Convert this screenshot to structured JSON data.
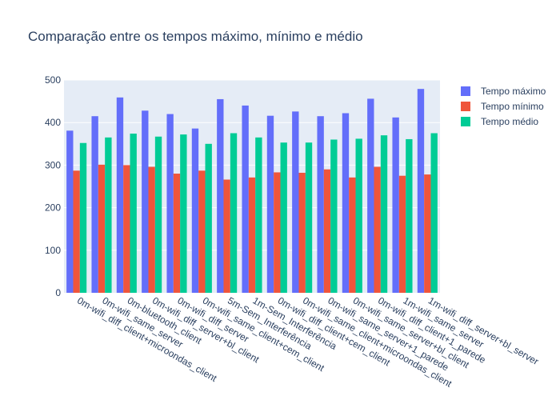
{
  "chart_data": {
    "type": "bar",
    "title": "Comparação entre os tempos máximo, mínimo e médio",
    "xlabel": "",
    "ylabel": "",
    "ylim": [
      0,
      500
    ],
    "yticks": [
      0,
      100,
      200,
      300,
      400,
      500
    ],
    "grid": true,
    "legend_position": "top-right",
    "categories": [
      "0m-wifi_diff_client+microondas_client",
      "0m-wifi_same_server",
      "0m-bluetooth_client",
      "0m-wifi_diff_server+bl_client",
      "0m-wifi_diff_server",
      "0m-wifi_same_client+cem_client",
      "5m-Sem_Interferência",
      "1m-Sem_Interferência",
      "0m-wifi_diff_client+cem_client",
      "0m-wifi_same_client+microondas_client",
      "0m-wifi_same_server+1_parede",
      "0m-wifi_same_server+bl_client",
      "0m-wifi_diff_client+1_parede",
      "1m-wifi_same_server",
      "1m-wifi_diff_server+bl_server"
    ],
    "series": [
      {
        "name": "Tempo máximo",
        "color": "#636efa",
        "values": [
          381,
          415,
          459,
          428,
          420,
          386,
          455,
          440,
          416,
          426,
          415,
          422,
          456,
          412,
          479
        ]
      },
      {
        "name": "Tempo mínimo",
        "color": "#ef553b",
        "values": [
          287,
          301,
          300,
          296,
          280,
          287,
          266,
          271,
          283,
          282,
          290,
          271,
          296,
          275,
          278
        ]
      },
      {
        "name": "Tempo médio",
        "color": "#00cc96",
        "values": [
          352,
          365,
          374,
          367,
          372,
          350,
          375,
          365,
          353,
          353,
          360,
          362,
          370,
          361,
          375
        ]
      }
    ]
  }
}
